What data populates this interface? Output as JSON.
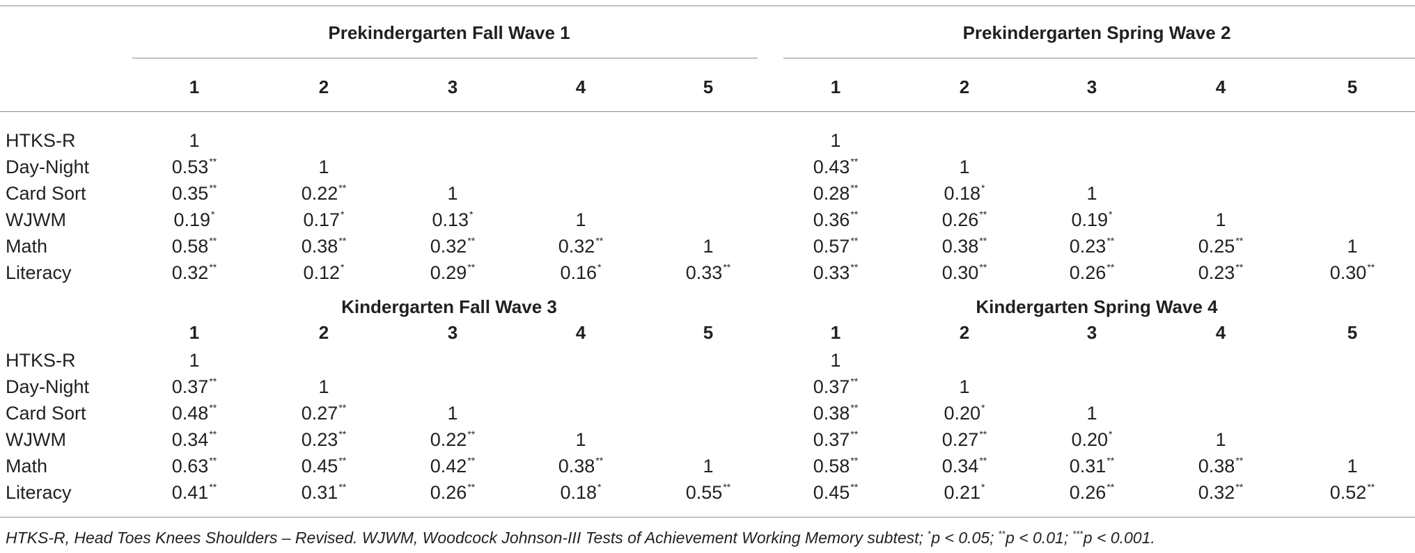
{
  "panels": [
    {
      "groups": [
        {
          "title": "Prekindergarten Fall Wave 1",
          "columns": [
            "1",
            "2",
            "3",
            "4",
            "5"
          ]
        },
        {
          "title": "Prekindergarten Spring Wave 2",
          "columns": [
            "1",
            "2",
            "3",
            "4",
            "5"
          ]
        }
      ],
      "rows": [
        {
          "label": "HTKS-R",
          "left": [
            [
              "1",
              ""
            ],
            [
              "",
              ""
            ],
            [
              "",
              ""
            ],
            [
              "",
              ""
            ],
            [
              "",
              ""
            ]
          ],
          "right": [
            [
              "1",
              ""
            ],
            [
              "",
              ""
            ],
            [
              "",
              ""
            ],
            [
              "",
              ""
            ],
            [
              "",
              ""
            ]
          ]
        },
        {
          "label": "Day-Night",
          "left": [
            [
              "0.53",
              "**"
            ],
            [
              "1",
              ""
            ],
            [
              "",
              ""
            ],
            [
              "",
              ""
            ],
            [
              "",
              ""
            ]
          ],
          "right": [
            [
              "0.43",
              "**"
            ],
            [
              "1",
              ""
            ],
            [
              "",
              ""
            ],
            [
              "",
              ""
            ],
            [
              "",
              ""
            ]
          ]
        },
        {
          "label": "Card Sort",
          "left": [
            [
              "0.35",
              "**"
            ],
            [
              "0.22",
              "**"
            ],
            [
              "1",
              ""
            ],
            [
              "",
              ""
            ],
            [
              "",
              ""
            ]
          ],
          "right": [
            [
              "0.28",
              "**"
            ],
            [
              "0.18",
              "*"
            ],
            [
              "1",
              ""
            ],
            [
              "",
              ""
            ],
            [
              "",
              ""
            ]
          ]
        },
        {
          "label": "WJWM",
          "left": [
            [
              "0.19",
              "*"
            ],
            [
              "0.17",
              "*"
            ],
            [
              "0.13",
              "*"
            ],
            [
              "1",
              ""
            ],
            [
              "",
              ""
            ]
          ],
          "right": [
            [
              "0.36",
              "**"
            ],
            [
              "0.26",
              "**"
            ],
            [
              "0.19",
              "*"
            ],
            [
              "1",
              ""
            ],
            [
              "",
              ""
            ]
          ]
        },
        {
          "label": "Math",
          "left": [
            [
              "0.58",
              "**"
            ],
            [
              "0.38",
              "**"
            ],
            [
              "0.32",
              "**"
            ],
            [
              "0.32",
              "**"
            ],
            [
              "1",
              ""
            ]
          ],
          "right": [
            [
              "0.57",
              "**"
            ],
            [
              "0.38",
              "**"
            ],
            [
              "0.23",
              "**"
            ],
            [
              "0.25",
              "**"
            ],
            [
              "1",
              ""
            ]
          ]
        },
        {
          "label": "Literacy",
          "left": [
            [
              "0.32",
              "**"
            ],
            [
              "0.12",
              "*"
            ],
            [
              "0.29",
              "**"
            ],
            [
              "0.16",
              "*"
            ],
            [
              "0.33",
              "**"
            ]
          ],
          "right": [
            [
              "0.33",
              "**"
            ],
            [
              "0.30",
              "**"
            ],
            [
              "0.26",
              "**"
            ],
            [
              "0.23",
              "**"
            ],
            [
              "0.30",
              "**"
            ]
          ]
        }
      ]
    },
    {
      "groups": [
        {
          "title": "Kindergarten Fall Wave 3",
          "columns": [
            "1",
            "2",
            "3",
            "4",
            "5"
          ]
        },
        {
          "title": "Kindergarten Spring Wave 4",
          "columns": [
            "1",
            "2",
            "3",
            "4",
            "5"
          ]
        }
      ],
      "rows": [
        {
          "label": "HTKS-R",
          "left": [
            [
              "1",
              ""
            ],
            [
              "",
              ""
            ],
            [
              "",
              ""
            ],
            [
              "",
              ""
            ],
            [
              "",
              ""
            ]
          ],
          "right": [
            [
              "1",
              ""
            ],
            [
              "",
              ""
            ],
            [
              "",
              ""
            ],
            [
              "",
              ""
            ],
            [
              "",
              ""
            ]
          ]
        },
        {
          "label": "Day-Night",
          "left": [
            [
              "0.37",
              "**"
            ],
            [
              "1",
              ""
            ],
            [
              "",
              ""
            ],
            [
              "",
              ""
            ],
            [
              "",
              ""
            ]
          ],
          "right": [
            [
              "0.37",
              "**"
            ],
            [
              "1",
              ""
            ],
            [
              "",
              ""
            ],
            [
              "",
              ""
            ],
            [
              "",
              ""
            ]
          ]
        },
        {
          "label": "Card Sort",
          "left": [
            [
              "0.48",
              "**"
            ],
            [
              "0.27",
              "**"
            ],
            [
              "1",
              ""
            ],
            [
              "",
              ""
            ],
            [
              "",
              ""
            ]
          ],
          "right": [
            [
              "0.38",
              "**"
            ],
            [
              "0.20",
              "*"
            ],
            [
              "1",
              ""
            ],
            [
              "",
              ""
            ],
            [
              "",
              ""
            ]
          ]
        },
        {
          "label": "WJWM",
          "left": [
            [
              "0.34",
              "**"
            ],
            [
              "0.23",
              "**"
            ],
            [
              "0.22",
              "**"
            ],
            [
              "1",
              ""
            ],
            [
              "",
              ""
            ]
          ],
          "right": [
            [
              "0.37",
              "**"
            ],
            [
              "0.27",
              "**"
            ],
            [
              "0.20",
              "*"
            ],
            [
              "1",
              ""
            ],
            [
              "",
              ""
            ]
          ]
        },
        {
          "label": "Math",
          "left": [
            [
              "0.63",
              "**"
            ],
            [
              "0.45",
              "**"
            ],
            [
              "0.42",
              "**"
            ],
            [
              "0.38",
              "**"
            ],
            [
              "1",
              ""
            ]
          ],
          "right": [
            [
              "0.58",
              "**"
            ],
            [
              "0.34",
              "**"
            ],
            [
              "0.31",
              "**"
            ],
            [
              "0.38",
              "**"
            ],
            [
              "1",
              ""
            ]
          ]
        },
        {
          "label": "Literacy",
          "left": [
            [
              "0.41",
              "**"
            ],
            [
              "0.31",
              "**"
            ],
            [
              "0.26",
              "**"
            ],
            [
              "0.18",
              "*"
            ],
            [
              "0.55",
              "**"
            ]
          ],
          "right": [
            [
              "0.45",
              "**"
            ],
            [
              "0.21",
              "*"
            ],
            [
              "0.26",
              "**"
            ],
            [
              "0.32",
              "**"
            ],
            [
              "0.52",
              "**"
            ]
          ]
        }
      ]
    }
  ],
  "footnote": {
    "text_main": "HTKS-R, Head Toes Knees Shoulders – Revised. WJWM, Woodcock Johnson-III Tests of Achievement Working Memory subtest; ",
    "sig1_mark": "*",
    "sig1_text": "p < 0.05; ",
    "sig2_mark": "**",
    "sig2_text": "p < 0.01; ",
    "sig3_mark": "***",
    "sig3_text": "p < 0.001."
  }
}
